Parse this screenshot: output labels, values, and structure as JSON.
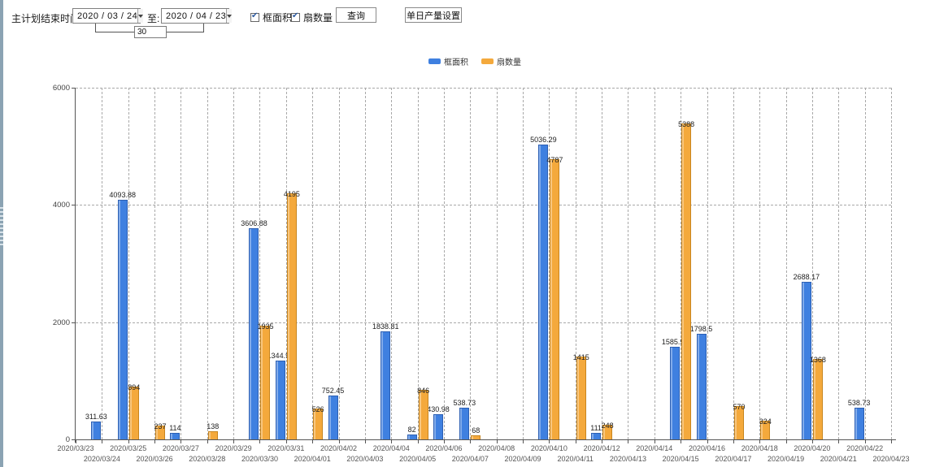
{
  "toolbar": {
    "plan_end_label": "主计划结束时间:",
    "date_from": "2020 / 03 / 24",
    "to_label": "至:",
    "date_to": "2020 / 04 / 23",
    "interval_days": "30",
    "checkbox_frame_area": "框面积",
    "checkbox_fan_count": "扇数量",
    "query_button": "查询",
    "daily_output_button": "单日产量设置"
  },
  "colors": {
    "frame_area_blue": "#3F80E0",
    "fan_count_orange": "#F4A93C",
    "grid": "#a9a9a9",
    "axis": "#555555"
  },
  "chart_data": {
    "type": "bar",
    "title": "",
    "xlabel": "",
    "ylabel": "",
    "ylim": [
      0,
      6000
    ],
    "yticks": [
      0,
      2000,
      4000,
      6000
    ],
    "grid": true,
    "legend_position": "top",
    "categories": [
      "2020/03/23",
      "2020/03/24",
      "2020/03/25",
      "2020/03/26",
      "2020/03/27",
      "2020/03/28",
      "2020/03/29",
      "2020/03/30",
      "2020/03/31",
      "2020/04/01",
      "2020/04/02",
      "2020/04/03",
      "2020/04/04",
      "2020/04/05",
      "2020/04/06",
      "2020/04/07",
      "2020/04/08",
      "2020/04/09",
      "2020/04/10",
      "2020/04/11",
      "2020/04/12",
      "2020/04/13",
      "2020/04/14",
      "2020/04/15",
      "2020/04/16",
      "2020/04/17",
      "2020/04/18",
      "2020/04/19",
      "2020/04/20",
      "2020/04/21",
      "2020/04/22",
      "2020/04/23"
    ],
    "series": [
      {
        "name": "框面积",
        "color": "#3F80E0",
        "values": [
          null,
          311.63,
          4093.88,
          null,
          114,
          null,
          null,
          3606.88,
          1344.95,
          null,
          752.45,
          null,
          1838.81,
          82,
          430.98,
          538.73,
          null,
          null,
          5036.29,
          null,
          111,
          null,
          null,
          1585.96,
          1798.5,
          null,
          null,
          null,
          2688.17,
          null,
          538.73,
          null
        ]
      },
      {
        "name": "扇数量",
        "color": "#F4A93C",
        "values": [
          null,
          null,
          894,
          237,
          null,
          138,
          null,
          1935,
          4195,
          526,
          null,
          null,
          null,
          846,
          null,
          68,
          null,
          null,
          4787,
          1415,
          248,
          null,
          null,
          5388,
          null,
          570,
          324,
          null,
          1368,
          null,
          null,
          null
        ]
      }
    ]
  }
}
